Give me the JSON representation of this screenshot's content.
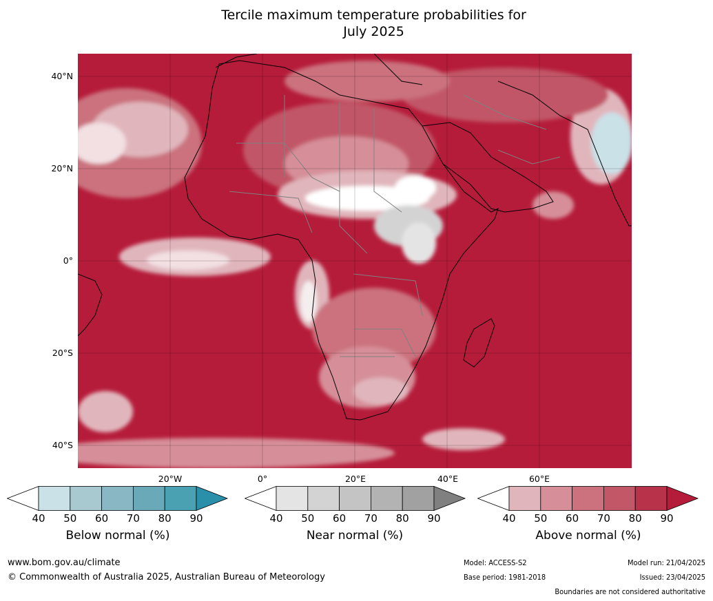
{
  "title_line1": "Tercile maximum temperature probabilities for",
  "title_line2": "July 2025",
  "map": {
    "lat_labels": [
      "40°N",
      "20°N",
      "0°",
      "20°S",
      "40°S"
    ],
    "lon_labels": [
      "20°W",
      "0°",
      "20°E",
      "40°E",
      "60°E"
    ],
    "region": "Africa, Middle East, Indian Ocean"
  },
  "colorbars": [
    {
      "label": "Below normal (%)",
      "ticks": [
        "40",
        "50",
        "60",
        "70",
        "80",
        "90"
      ],
      "colors": [
        "#ffffff",
        "#c9e1e7",
        "#a7c9cf",
        "#89b7c3",
        "#6aaab8",
        "#4aa1b2",
        "#2a8fa8"
      ]
    },
    {
      "label": "Near normal (%)",
      "ticks": [
        "40",
        "50",
        "60",
        "70",
        "80",
        "90"
      ],
      "colors": [
        "#ffffff",
        "#e4e4e4",
        "#d3d3d3",
        "#c4c4c4",
        "#b3b3b3",
        "#a1a1a1",
        "#808080"
      ]
    },
    {
      "label": "Above normal (%)",
      "ticks": [
        "40",
        "50",
        "60",
        "70",
        "80",
        "90"
      ],
      "colors": [
        "#ffffff",
        "#e0b6bc",
        "#d68f99",
        "#cb727e",
        "#c15767",
        "#b83349",
        "#b51c3a"
      ]
    }
  ],
  "footer": {
    "website": "www.bom.gov.au/climate",
    "copyright": "© Commonwealth of Australia 2025, Australian Bureau of Meteorology",
    "model": "Model: ACCESS-S2",
    "base_period": "Base period: 1981-2018",
    "model_run": "Model run: 21/04/2025",
    "issued": "Issued: 23/04/2025",
    "boundaries": "Boundaries are not considered authoritative"
  }
}
